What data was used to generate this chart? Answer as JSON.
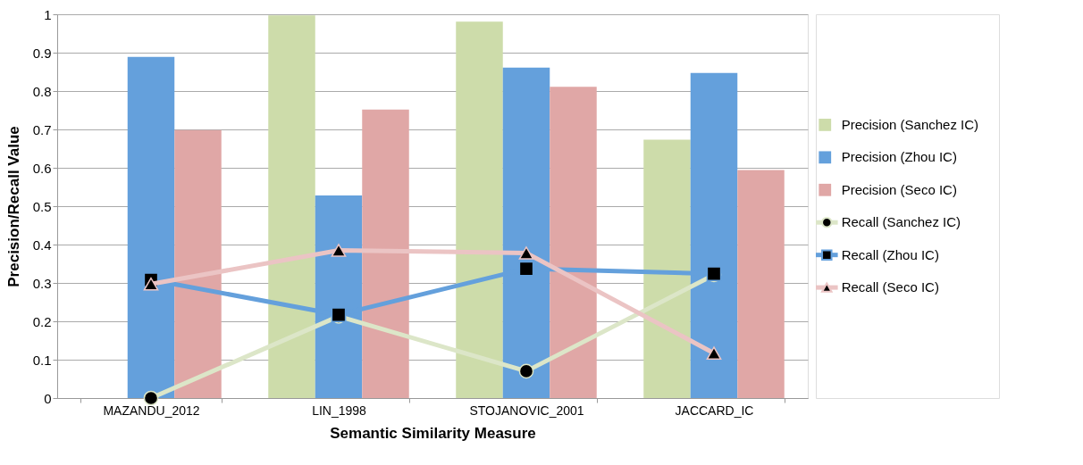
{
  "chart_data": {
    "type": "bar",
    "xlabel": "Semantic Similarity Measure",
    "ylabel": "Precision/Recall Value",
    "categories": [
      "MAZANDU_2012",
      "LIN_1998",
      "STOJANOVIC_2001",
      "JACCARD_IC"
    ],
    "ylim": [
      0,
      1
    ],
    "yticks": [
      0,
      0.1,
      0.2,
      0.3,
      0.4,
      0.5,
      0.6,
      0.7,
      0.8,
      0.9,
      1
    ],
    "grid": "y",
    "legend": "right",
    "series": [
      {
        "name": "Precision (Sanchez IC)",
        "color": "#cddcaa",
        "values": [
          0,
          0.997,
          0.981,
          0.673
        ]
      },
      {
        "name": "Precision (Zhou IC)",
        "color": "#64a0dc",
        "values": [
          0.889,
          0.528,
          0.861,
          0.847
        ]
      },
      {
        "name": "Precision (Seco IC)",
        "color": "#e0a7a6",
        "values": [
          0.698,
          0.752,
          0.811,
          0.594
        ]
      },
      {
        "name": "Recall (Sanchez IC)",
        "type": "line",
        "marker": "circle",
        "color": "#dce6c8",
        "values": [
          0,
          0.213,
          0.07,
          0.321
        ]
      },
      {
        "name": "Recall (Zhou IC)",
        "type": "line",
        "marker": "square",
        "color": "#64a0dc",
        "values": [
          0.308,
          0.217,
          0.337,
          0.324
        ]
      },
      {
        "name": "Recall (Seco IC)",
        "type": "line",
        "marker": "triangle",
        "color": "#ebc4c4",
        "values": [
          0.297,
          0.385,
          0.378,
          0.117
        ]
      }
    ]
  }
}
